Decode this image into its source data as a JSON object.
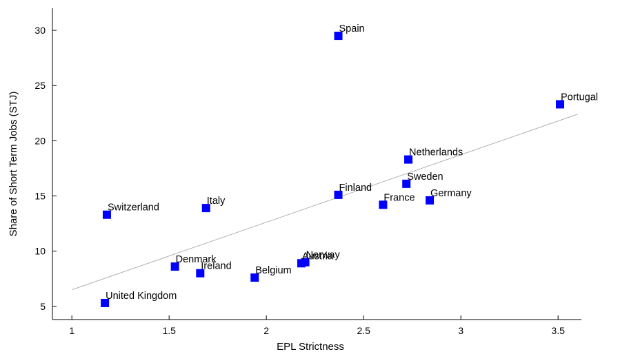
{
  "chart_data": {
    "type": "scatter",
    "title": "",
    "xlabel": "EPL Strictness",
    "ylabel": "Share of Short Term Jobs (STJ)",
    "xlim": [
      0.9,
      3.62
    ],
    "ylim": [
      3.8,
      32.0
    ],
    "xticks": [
      "1",
      "1.5",
      "2",
      "2.5",
      "3",
      "3.5"
    ],
    "yticks": [
      "5",
      "10",
      "15",
      "20",
      "25",
      "30"
    ],
    "grid": false,
    "legend": "none",
    "marker_color": "#0000ff",
    "fit_line_color": "#b0b0b0",
    "points": [
      {
        "label": "Spain",
        "x": 2.37,
        "y": 29.5
      },
      {
        "label": "Portugal",
        "x": 3.51,
        "y": 23.3
      },
      {
        "label": "Netherlands",
        "x": 2.73,
        "y": 18.3
      },
      {
        "label": "Sweden",
        "x": 2.72,
        "y": 16.1
      },
      {
        "label": "Finland",
        "x": 2.37,
        "y": 15.1
      },
      {
        "label": "France",
        "x": 2.6,
        "y": 14.2
      },
      {
        "label": "Germany",
        "x": 2.84,
        "y": 14.6
      },
      {
        "label": "Italy",
        "x": 1.69,
        "y": 13.9
      },
      {
        "label": "Switzerland",
        "x": 1.18,
        "y": 13.3
      },
      {
        "label": "Norway",
        "x": 2.2,
        "y": 9.0
      },
      {
        "label": "Austria",
        "x": 2.18,
        "y": 8.9
      },
      {
        "label": "Denmark",
        "x": 1.53,
        "y": 8.6
      },
      {
        "label": "Ireland",
        "x": 1.66,
        "y": 8.0
      },
      {
        "label": "Belgium",
        "x": 1.94,
        "y": 7.6
      },
      {
        "label": "United Kingdom",
        "x": 1.17,
        "y": 5.3
      }
    ],
    "fit_line": {
      "x": [
        1.0,
        3.6
      ],
      "y": [
        6.5,
        22.4
      ]
    }
  }
}
